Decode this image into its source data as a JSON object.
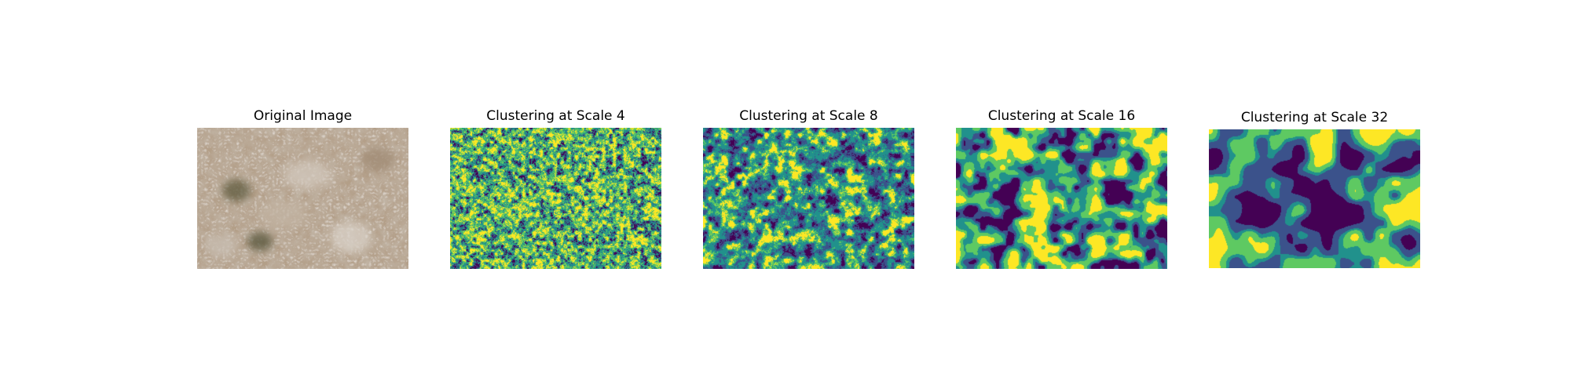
{
  "panels": [
    {
      "title": "Original Image",
      "kind": "photo"
    },
    {
      "title": "Clustering at Scale 4",
      "kind": "cluster",
      "scale": 4
    },
    {
      "title": "Clustering at Scale 8",
      "kind": "cluster",
      "scale": 8
    },
    {
      "title": "Clustering at Scale 16",
      "kind": "cluster",
      "scale": 16
    },
    {
      "title": "Clustering at Scale 32",
      "kind": "cluster",
      "scale": 32
    }
  ],
  "colors": {
    "cluster_palette": [
      "#440154",
      "#3b528b",
      "#21918c",
      "#5ec962",
      "#fde725"
    ],
    "photo_base": "#b39f88"
  }
}
